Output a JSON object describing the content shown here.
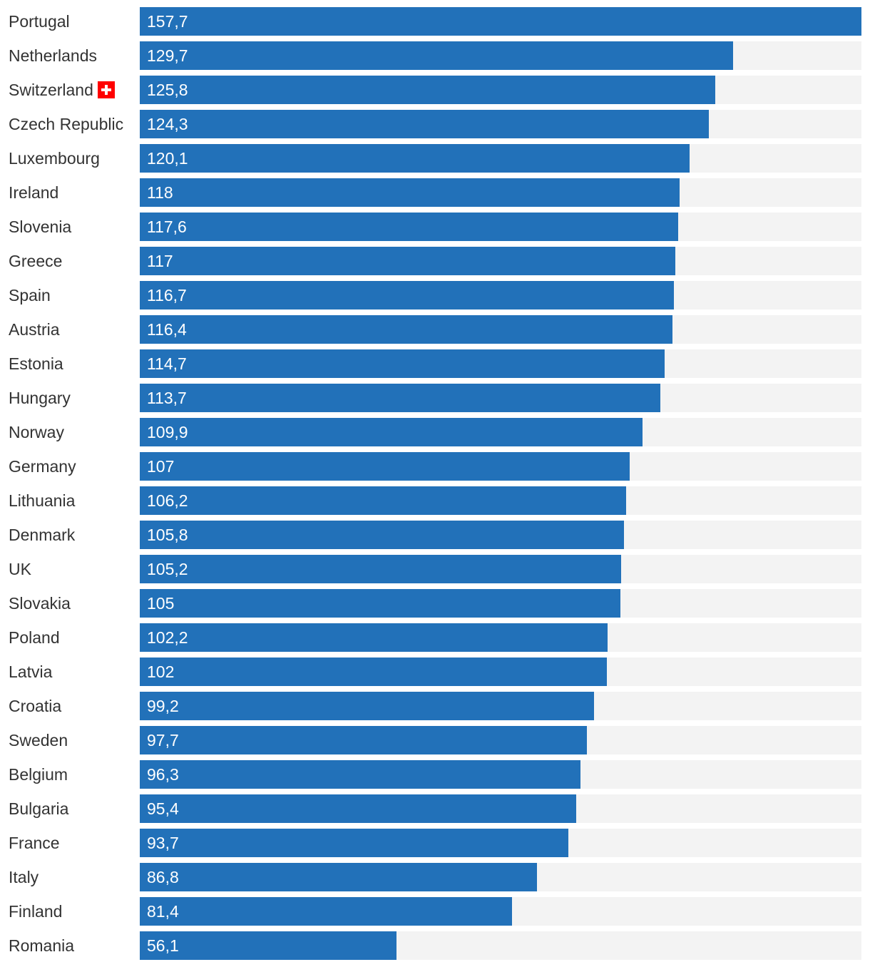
{
  "chart_data": {
    "type": "bar",
    "orientation": "horizontal",
    "categories": [
      "Portugal",
      "Netherlands",
      "Switzerland",
      "Czech Republic",
      "Luxembourg",
      "Ireland",
      "Slovenia",
      "Greece",
      "Spain",
      "Austria",
      "Estonia",
      "Hungary",
      "Norway",
      "Germany",
      "Lithuania",
      "Denmark",
      "UK",
      "Slovakia",
      "Poland",
      "Latvia",
      "Croatia",
      "Sweden",
      "Belgium",
      "Bulgaria",
      "France",
      "Italy",
      "Finland",
      "Romania"
    ],
    "values": [
      157.7,
      129.7,
      125.8,
      124.3,
      120.1,
      118,
      117.6,
      117,
      116.7,
      116.4,
      114.7,
      113.7,
      109.9,
      107,
      106.2,
      105.8,
      105.2,
      105,
      102.2,
      102,
      99.2,
      97.7,
      96.3,
      95.4,
      93.7,
      86.8,
      81.4,
      56.1
    ],
    "value_labels": [
      "157,7",
      "129,7",
      "125,8",
      "124,3",
      "120,1",
      "118",
      "117,6",
      "117",
      "116,7",
      "116,4",
      "114,7",
      "113,7",
      "109,9",
      "107",
      "106,2",
      "105,8",
      "105,2",
      "105",
      "102,2",
      "102",
      "99,2",
      "97,7",
      "96,3",
      "95,4",
      "93,7",
      "86,8",
      "81,4",
      "56,1"
    ],
    "highlighted_category": "Switzerland",
    "highlight_icon": "swiss-flag-icon",
    "xlim": [
      0,
      157.7
    ],
    "grid": false,
    "legend": "none",
    "colors": {
      "bar": "#2271b9",
      "track": "#f3f3f3",
      "label_text": "#333333",
      "value_text": "#ffffff",
      "flag_red": "#ff0000"
    }
  }
}
